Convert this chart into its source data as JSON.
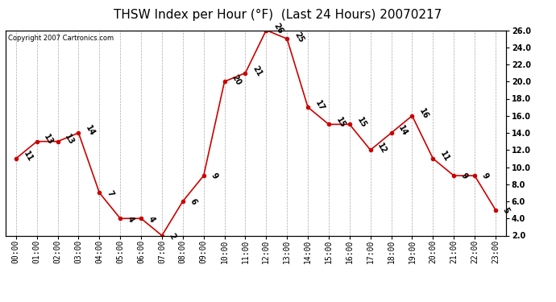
{
  "title": "THSW Index per Hour (°F)  (Last 24 Hours) 20070217",
  "copyright": "Copyright 2007 Cartronics.com",
  "hours": [
    "00:00",
    "01:00",
    "02:00",
    "03:00",
    "04:00",
    "05:00",
    "06:00",
    "07:00",
    "08:00",
    "09:00",
    "10:00",
    "11:00",
    "12:00",
    "13:00",
    "14:00",
    "15:00",
    "16:00",
    "17:00",
    "18:00",
    "19:00",
    "20:00",
    "21:00",
    "22:00",
    "23:00"
  ],
  "values": [
    11,
    13,
    13,
    14,
    7,
    4,
    4,
    2,
    6,
    9,
    20,
    21,
    26,
    25,
    17,
    15,
    15,
    12,
    14,
    16,
    11,
    9,
    9,
    5
  ],
  "ylim": [
    2.0,
    26.0
  ],
  "yticks": [
    2.0,
    4.0,
    6.0,
    8.0,
    10.0,
    12.0,
    14.0,
    16.0,
    18.0,
    20.0,
    22.0,
    24.0,
    26.0
  ],
  "line_color": "#cc0000",
  "marker_color": "#cc0000",
  "bg_color": "#ffffff",
  "plot_bg_color": "#ffffff",
  "grid_color": "#aaaaaa",
  "title_fontsize": 11,
  "label_fontsize": 7,
  "annotation_fontsize": 7,
  "copyright_fontsize": 6
}
